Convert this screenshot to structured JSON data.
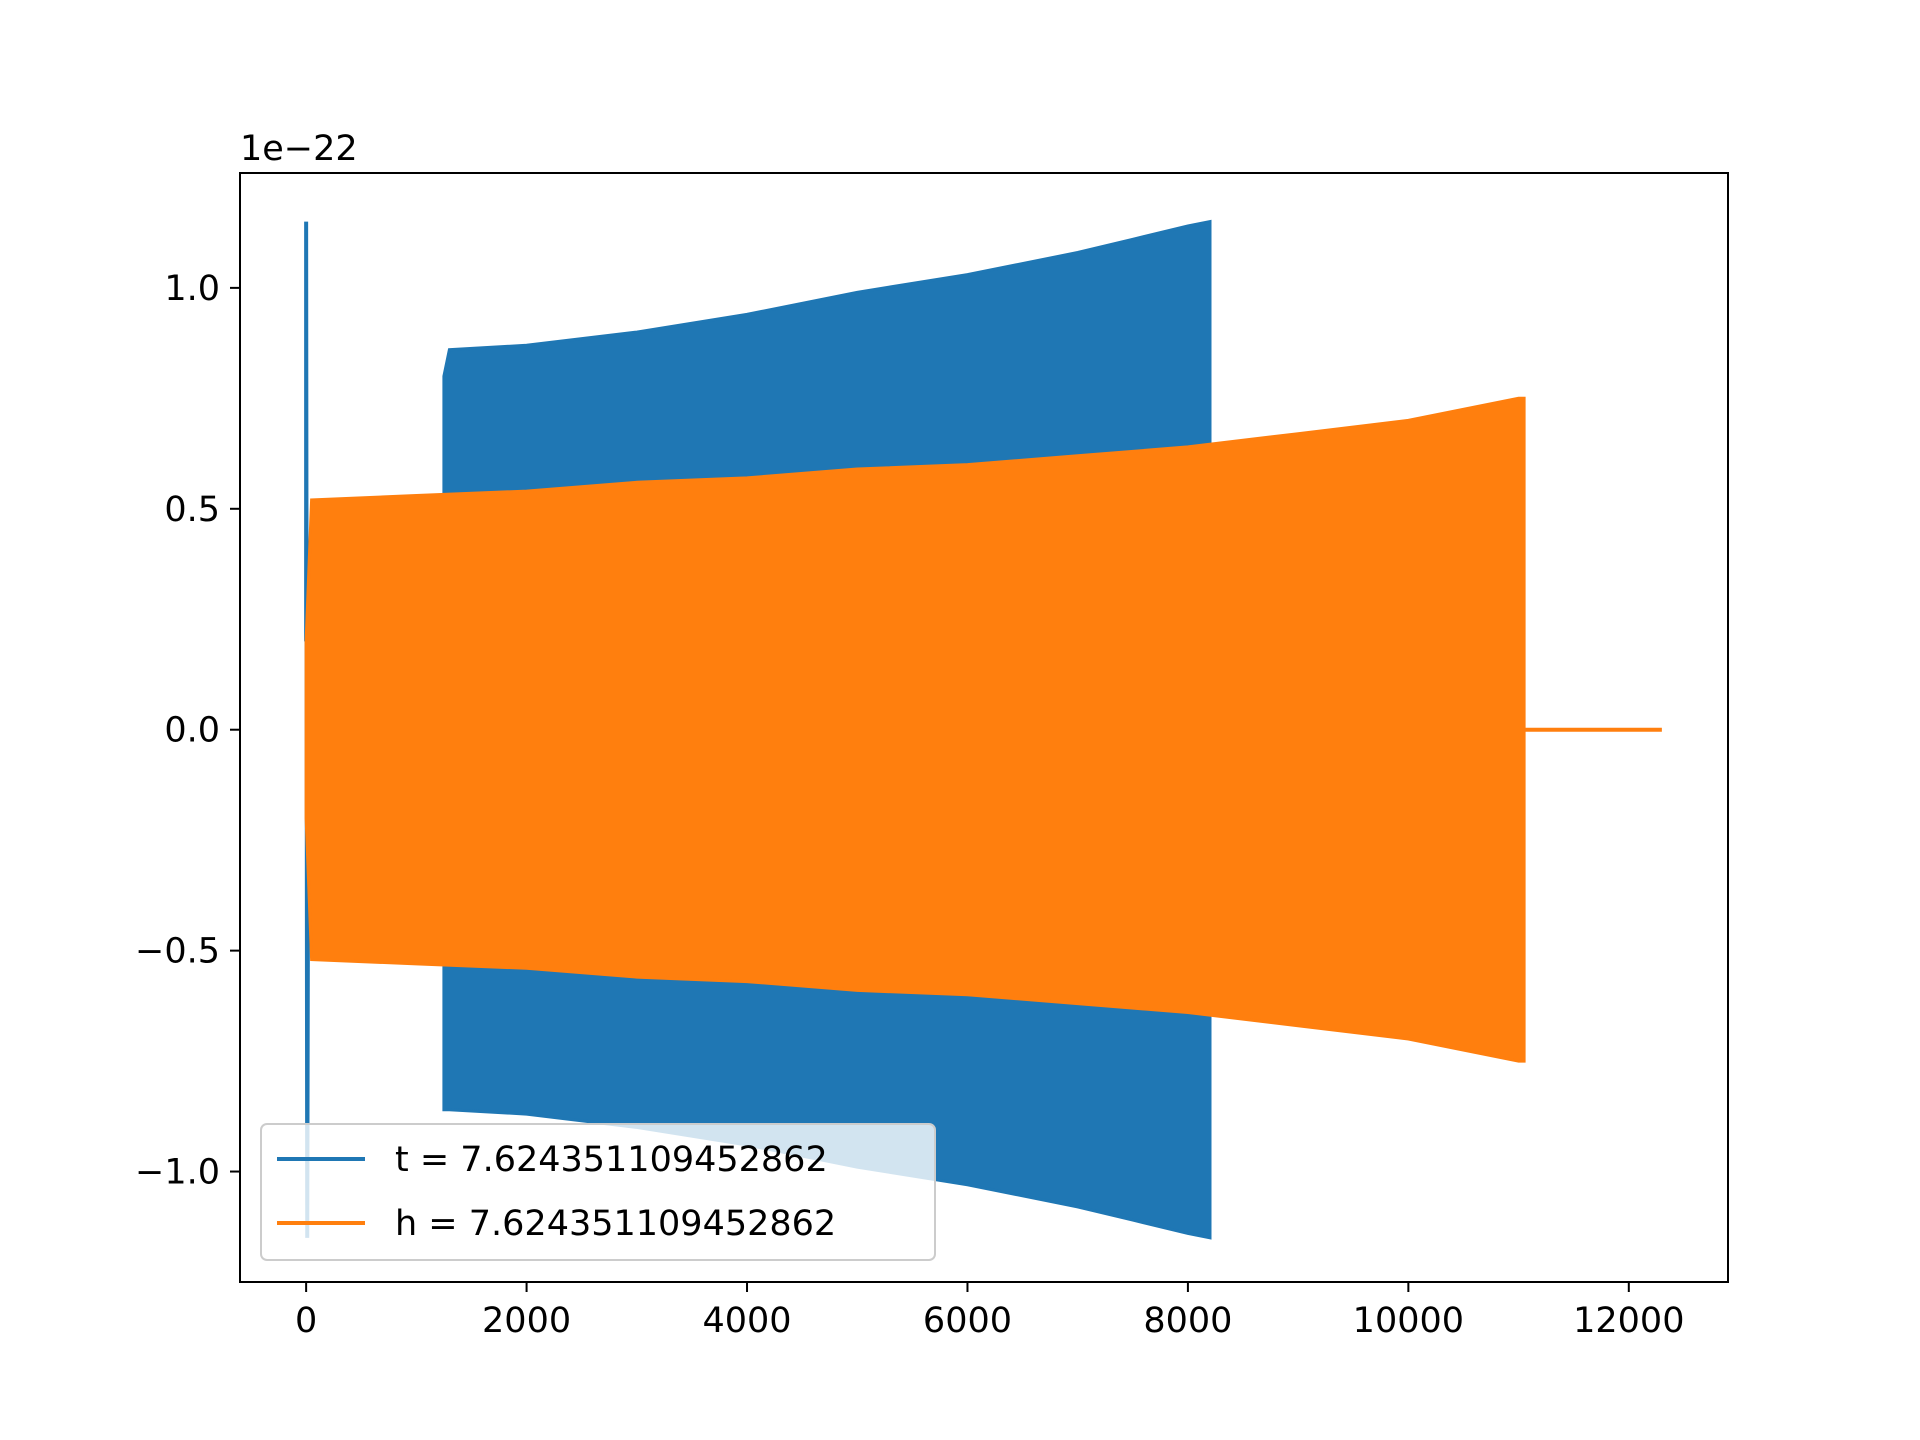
{
  "chart_data": {
    "type": "line",
    "title": "",
    "xlabel": "",
    "ylabel": "",
    "y_offset_label": "1e−22",
    "xlim": [
      -600,
      12900
    ],
    "ylim": [
      -1.25,
      1.26
    ],
    "x_ticks": [
      0,
      2000,
      4000,
      6000,
      8000,
      10000,
      12000
    ],
    "x_tick_labels": [
      "0",
      "2000",
      "4000",
      "6000",
      "8000",
      "10000",
      "12000"
    ],
    "y_ticks": [
      -1.0,
      -0.5,
      0.0,
      0.5,
      1.0
    ],
    "y_tick_labels": [
      "−1.0",
      "−0.5",
      "0.0",
      "0.5",
      "1.0"
    ],
    "grid": false,
    "legend_position": "lower-left",
    "series": [
      {
        "name": "t = 7.624351109452862",
        "color": "#1f77b4",
        "spike": {
          "x_range": [
            0,
            20
          ],
          "amplitude": 1.15
        },
        "envelope": {
          "x": [
            1250,
            1300,
            2000,
            3000,
            4000,
            5000,
            6000,
            7000,
            7500,
            8000,
            8200
          ],
          "upper": [
            0.8,
            0.86,
            0.87,
            0.9,
            0.94,
            0.99,
            1.03,
            1.08,
            1.11,
            1.14,
            1.15
          ],
          "lower": [
            -0.86,
            -0.86,
            -0.87,
            -0.9,
            -0.94,
            -0.99,
            -1.03,
            -1.08,
            -1.11,
            -1.14,
            -1.15
          ]
        }
      },
      {
        "name": "h = 7.624351109452862",
        "color": "#ff7f0e",
        "envelope": {
          "x": [
            0,
            50,
            1000,
            2000,
            3000,
            4000,
            5000,
            6000,
            7000,
            8000,
            9000,
            10000,
            11000,
            11050
          ],
          "upper": [
            0.2,
            0.52,
            0.53,
            0.54,
            0.56,
            0.57,
            0.59,
            0.6,
            0.62,
            0.64,
            0.67,
            0.7,
            0.75,
            0.75
          ],
          "lower": [
            -0.2,
            -0.52,
            -0.53,
            -0.54,
            -0.56,
            -0.57,
            -0.59,
            -0.6,
            -0.62,
            -0.64,
            -0.67,
            -0.7,
            -0.75,
            -0.75
          ]
        },
        "tail": {
          "x_range": [
            11050,
            12300
          ],
          "value": 0.0
        }
      }
    ]
  }
}
